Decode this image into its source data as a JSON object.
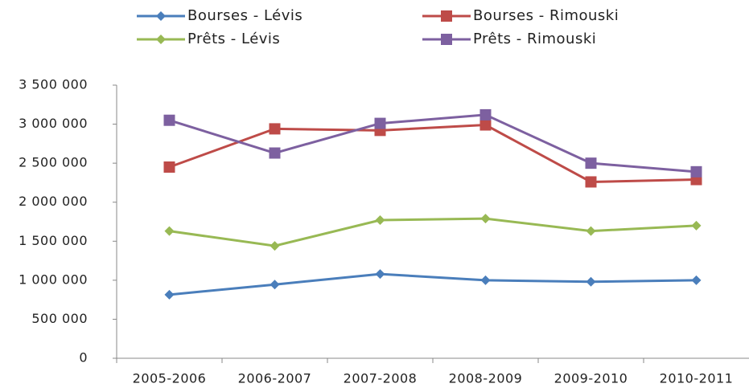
{
  "chart_data": {
    "type": "line",
    "categories": [
      "2005-2006",
      "2006-2007",
      "2007-2008",
      "2008-2009",
      "2009-2010",
      "2010-2011"
    ],
    "series": [
      {
        "name": "Bourses - Lévis",
        "color": "#4a7ebb",
        "marker": "diamond",
        "values": [
          815000,
          945000,
          1080000,
          1000000,
          980000,
          1000000
        ]
      },
      {
        "name": "Bourses - Rimouski",
        "color": "#be4b48",
        "marker": "square",
        "values": [
          2450000,
          2940000,
          2920000,
          2990000,
          2260000,
          2290000
        ]
      },
      {
        "name": "Prêts - Lévis",
        "color": "#98b954",
        "marker": "diamond",
        "values": [
          1630000,
          1440000,
          1770000,
          1790000,
          1630000,
          1700000
        ]
      },
      {
        "name": "Prêts - Rimouski",
        "color": "#7d60a0",
        "marker": "square",
        "values": [
          3050000,
          2630000,
          3010000,
          3120000,
          2500000,
          2390000
        ]
      }
    ],
    "ylim": [
      0,
      3500000
    ],
    "yticks": [
      0,
      {
        "value": 500000,
        "label": "500 000"
      },
      {
        "value": 1000000,
        "label": "1 000 000"
      },
      {
        "value": 1500000,
        "label": "1 500 000"
      },
      {
        "value": 2000000,
        "label": "2 000 000"
      },
      {
        "value": 2500000,
        "label": "2 500 000"
      },
      {
        "value": 3000000,
        "label": "3 000 000"
      },
      {
        "value": 3500000,
        "label": "3 500 000"
      }
    ],
    "grid": false,
    "legend": "top"
  }
}
